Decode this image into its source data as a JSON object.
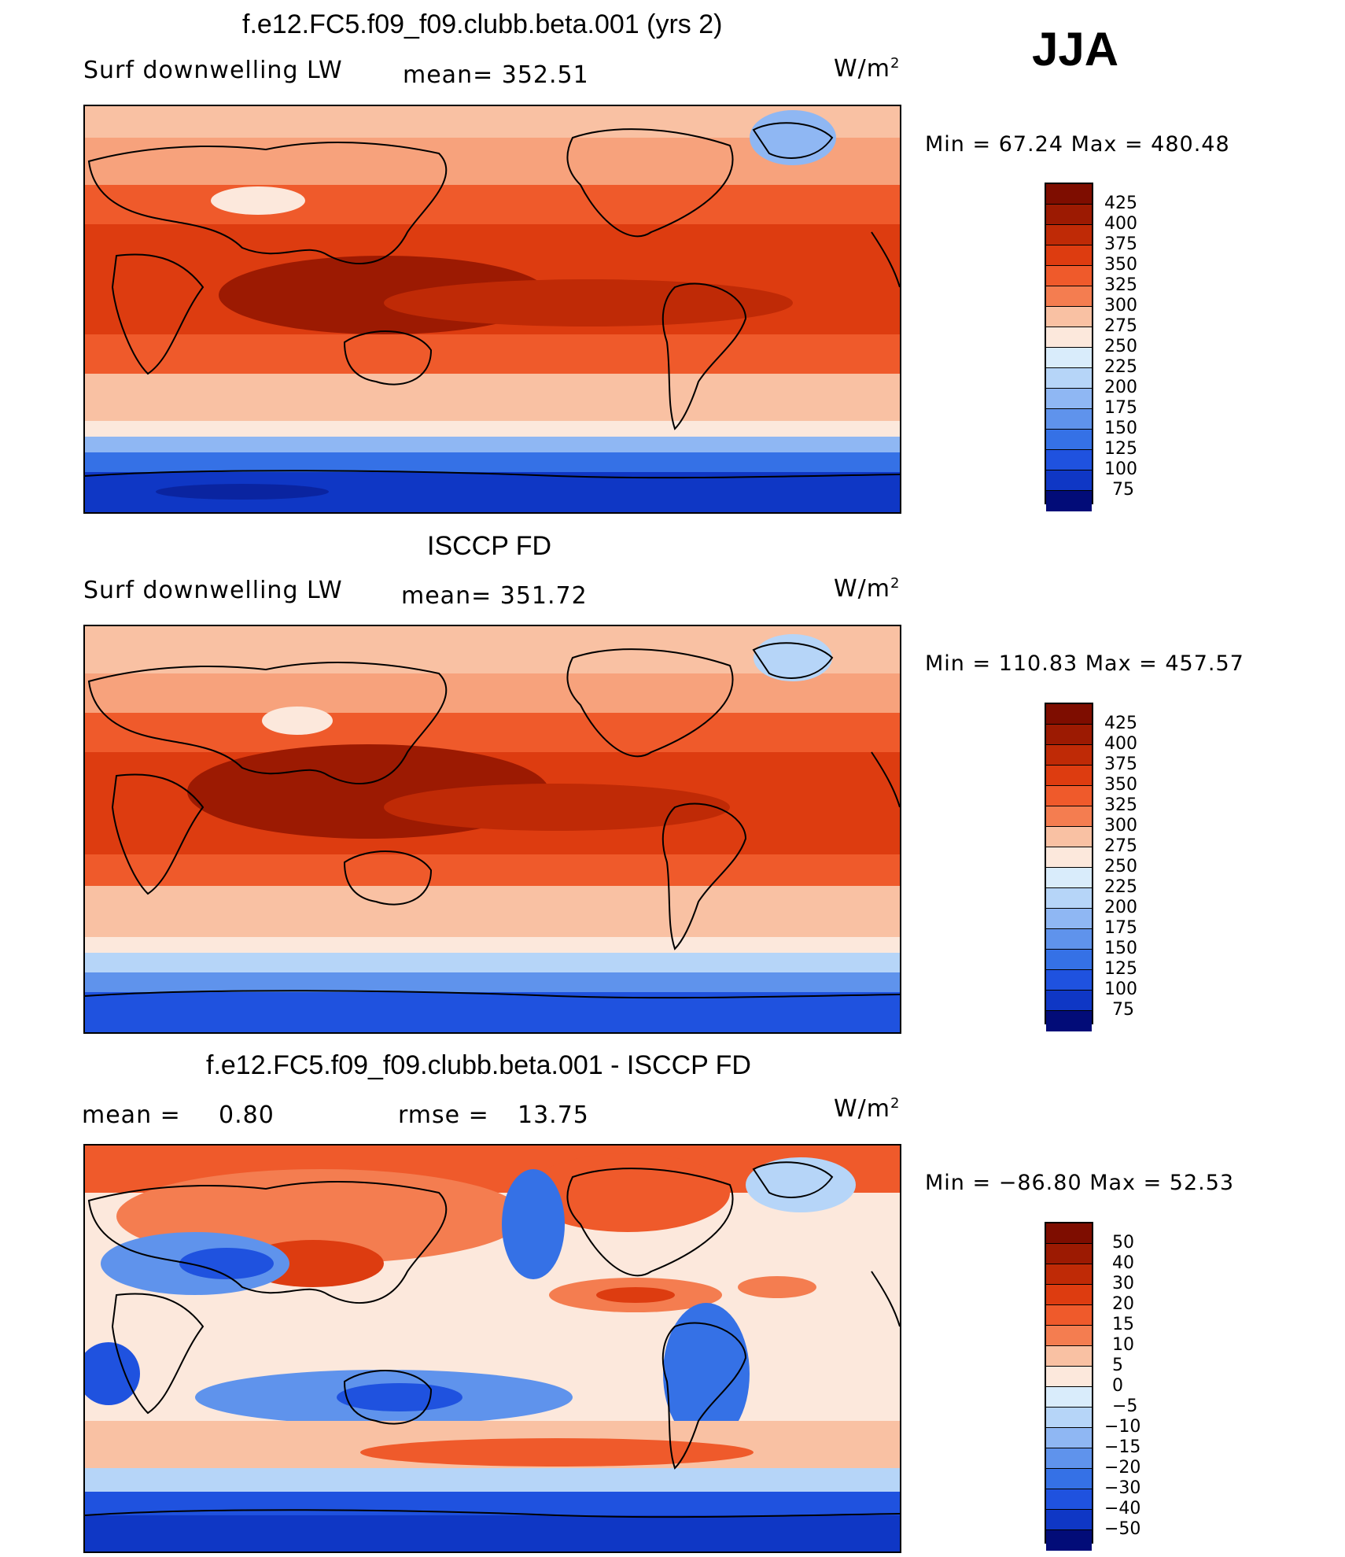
{
  "season": "JJA",
  "colors": {
    "warm_levels": [
      "#fce8dc",
      "#f9c1a3",
      "#f7a27c",
      "#f47d50",
      "#ef5a2b",
      "#dd3c10",
      "#bf2a06",
      "#9c1a02",
      "#7e0d00"
    ],
    "cool_levels": [
      "#d9ecfb",
      "#b6d5f8",
      "#8fb7f3",
      "#5f93ec",
      "#3571e6",
      "#1f52df",
      "#0f37c5",
      "#0a24a0",
      "#020c78"
    ]
  },
  "chart_data": [
    {
      "type": "heatmap",
      "title": "f.e12.FC5.f09_f09.clubb.beta.001 (yrs 2)",
      "variable": "Surf downwelling LW",
      "stat_label": "mean= 352.51",
      "mean": 352.51,
      "units": "W/m",
      "units_exp": "2",
      "min_max_label": "Min =   67.24 Max = 480.48",
      "min": 67.24,
      "max": 480.48,
      "colorbar_levels": [
        "425",
        "400",
        "375",
        "350",
        "325",
        "300",
        "275",
        "250",
        "225",
        "200",
        "175",
        "150",
        "125",
        "100",
        "75"
      ]
    },
    {
      "type": "heatmap",
      "title": "ISCCP FD",
      "variable": "Surf downwelling LW",
      "stat_label": "mean= 351.72",
      "mean": 351.72,
      "units": "W/m",
      "units_exp": "2",
      "min_max_label": "Min = 110.83 Max = 457.57",
      "min": 110.83,
      "max": 457.57,
      "colorbar_levels": [
        "425",
        "400",
        "375",
        "350",
        "325",
        "300",
        "275",
        "250",
        "225",
        "200",
        "175",
        "150",
        "125",
        "100",
        "75"
      ]
    },
    {
      "type": "heatmap",
      "title": "f.e12.FC5.f09_f09.clubb.beta.001 - ISCCP FD",
      "mean_label": "mean =",
      "mean_value": "0.80",
      "rmse_label": "rmse =",
      "rmse_value": "13.75",
      "units": "W/m",
      "units_exp": "2",
      "min_max_label": "Min = −86.80 Max =   52.53",
      "min": -86.8,
      "max": 52.53,
      "colorbar_levels": [
        "50",
        "40",
        "30",
        "20",
        "15",
        "10",
        "5",
        "0",
        "−5",
        "−10",
        "−15",
        "−20",
        "−30",
        "−40",
        "−50"
      ]
    }
  ]
}
